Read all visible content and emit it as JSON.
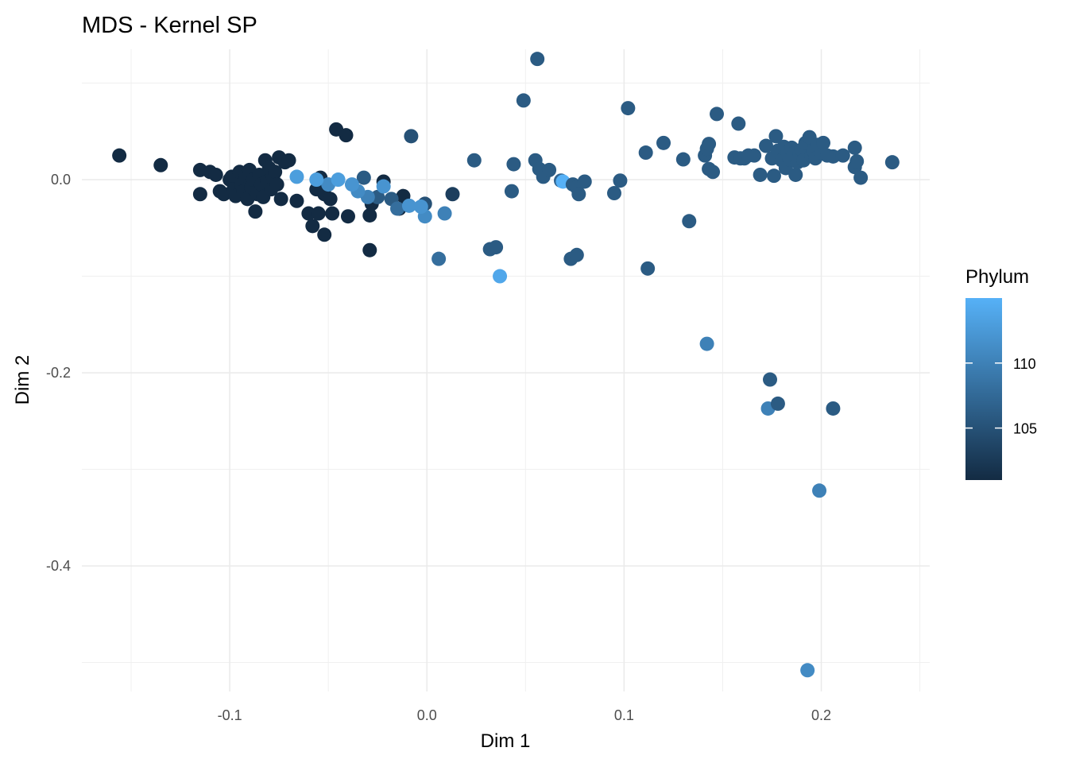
{
  "chart_data": {
    "type": "scatter",
    "title": "MDS - Kernel SP",
    "xlabel": "Dim 1",
    "ylabel": "Dim 2",
    "xlim": [
      -0.175,
      0.255
    ],
    "ylim": [
      -0.53,
      0.135
    ],
    "x_ticks": [
      -0.1,
      0.0,
      0.1,
      0.2
    ],
    "x_tick_labels": [
      "-0.1",
      "0.0",
      "0.1",
      "0.2"
    ],
    "y_ticks": [
      -0.4,
      -0.2,
      0.0
    ],
    "y_tick_labels": [
      "-0.4",
      "-0.2",
      "0.0"
    ],
    "grid": true,
    "legend": {
      "title": "Phylum",
      "placement": "right",
      "type": "colorbar",
      "range": [
        101,
        115
      ],
      "ticks": [
        105,
        110
      ],
      "tick_labels": [
        "105",
        "110"
      ],
      "low_color": "#132B43",
      "high_color": "#56B1F7"
    },
    "points": [
      {
        "x": -0.156,
        "y": 0.025,
        "c": 101
      },
      {
        "x": -0.135,
        "y": 0.015,
        "c": 101
      },
      {
        "x": -0.115,
        "y": 0.01,
        "c": 101
      },
      {
        "x": -0.115,
        "y": -0.015,
        "c": 101
      },
      {
        "x": -0.11,
        "y": 0.008,
        "c": 101
      },
      {
        "x": -0.107,
        "y": 0.005,
        "c": 101
      },
      {
        "x": -0.105,
        "y": -0.012,
        "c": 101
      },
      {
        "x": -0.103,
        "y": -0.015,
        "c": 101
      },
      {
        "x": -0.1,
        "y": 0.0,
        "c": 101
      },
      {
        "x": -0.099,
        "y": 0.003,
        "c": 101
      },
      {
        "x": -0.098,
        "y": -0.01,
        "c": 101
      },
      {
        "x": -0.097,
        "y": -0.017,
        "c": 101
      },
      {
        "x": -0.095,
        "y": 0.008,
        "c": 101
      },
      {
        "x": -0.094,
        "y": -0.005,
        "c": 101
      },
      {
        "x": -0.093,
        "y": -0.012,
        "c": 101
      },
      {
        "x": -0.092,
        "y": 0.004,
        "c": 101
      },
      {
        "x": -0.091,
        "y": -0.02,
        "c": 101
      },
      {
        "x": -0.09,
        "y": 0.01,
        "c": 101
      },
      {
        "x": -0.089,
        "y": -0.008,
        "c": 101
      },
      {
        "x": -0.088,
        "y": 0.0,
        "c": 101
      },
      {
        "x": -0.087,
        "y": -0.033,
        "c": 101
      },
      {
        "x": -0.086,
        "y": -0.015,
        "c": 101
      },
      {
        "x": -0.085,
        "y": 0.005,
        "c": 101
      },
      {
        "x": -0.084,
        "y": -0.005,
        "c": 101
      },
      {
        "x": -0.083,
        "y": -0.018,
        "c": 101
      },
      {
        "x": -0.082,
        "y": 0.02,
        "c": 101
      },
      {
        "x": -0.081,
        "y": -0.002,
        "c": 101
      },
      {
        "x": -0.08,
        "y": 0.012,
        "c": 101
      },
      {
        "x": -0.079,
        "y": -0.01,
        "c": 101
      },
      {
        "x": -0.078,
        "y": 0.003,
        "c": 101
      },
      {
        "x": -0.077,
        "y": 0.008,
        "c": 101
      },
      {
        "x": -0.076,
        "y": -0.005,
        "c": 101
      },
      {
        "x": -0.075,
        "y": 0.023,
        "c": 101
      },
      {
        "x": -0.074,
        "y": -0.02,
        "c": 101
      },
      {
        "x": -0.072,
        "y": 0.018,
        "c": 101
      },
      {
        "x": -0.07,
        "y": 0.02,
        "c": 101
      },
      {
        "x": -0.066,
        "y": -0.022,
        "c": 101
      },
      {
        "x": -0.06,
        "y": -0.035,
        "c": 101
      },
      {
        "x": -0.058,
        "y": -0.048,
        "c": 101
      },
      {
        "x": -0.056,
        "y": -0.01,
        "c": 101
      },
      {
        "x": -0.055,
        "y": -0.035,
        "c": 101
      },
      {
        "x": -0.054,
        "y": 0.002,
        "c": 101
      },
      {
        "x": -0.052,
        "y": -0.057,
        "c": 101
      },
      {
        "x": -0.052,
        "y": -0.015,
        "c": 101
      },
      {
        "x": -0.049,
        "y": -0.02,
        "c": 101
      },
      {
        "x": -0.048,
        "y": -0.035,
        "c": 101
      },
      {
        "x": -0.046,
        "y": 0.052,
        "c": 101
      },
      {
        "x": -0.041,
        "y": 0.046,
        "c": 101
      },
      {
        "x": -0.04,
        "y": -0.038,
        "c": 101
      },
      {
        "x": -0.029,
        "y": -0.037,
        "c": 101
      },
      {
        "x": -0.029,
        "y": -0.073,
        "c": 101
      },
      {
        "x": -0.028,
        "y": -0.025,
        "c": 101
      },
      {
        "x": -0.022,
        "y": -0.002,
        "c": 101
      },
      {
        "x": -0.014,
        "y": -0.03,
        "c": 101
      },
      {
        "x": -0.012,
        "y": -0.017,
        "c": 101
      },
      {
        "x": 0.013,
        "y": -0.015,
        "c": 103
      },
      {
        "x": -0.008,
        "y": 0.045,
        "c": 105
      },
      {
        "x": -0.001,
        "y": -0.025,
        "c": 105
      },
      {
        "x": -0.032,
        "y": 0.002,
        "c": 106
      },
      {
        "x": -0.025,
        "y": -0.018,
        "c": 106
      },
      {
        "x": -0.018,
        "y": -0.02,
        "c": 106
      },
      {
        "x": -0.015,
        "y": -0.03,
        "c": 108
      },
      {
        "x": -0.03,
        "y": -0.018,
        "c": 110
      },
      {
        "x": -0.035,
        "y": -0.012,
        "c": 111
      },
      {
        "x": -0.05,
        "y": -0.005,
        "c": 111
      },
      {
        "x": 0.006,
        "y": -0.082,
        "c": 108
      },
      {
        "x": 0.009,
        "y": -0.035,
        "c": 110
      },
      {
        "x": -0.001,
        "y": -0.038,
        "c": 111
      },
      {
        "x": -0.003,
        "y": -0.028,
        "c": 112
      },
      {
        "x": -0.009,
        "y": -0.027,
        "c": 112
      },
      {
        "x": -0.022,
        "y": -0.007,
        "c": 112
      },
      {
        "x": -0.038,
        "y": -0.005,
        "c": 112
      },
      {
        "x": -0.045,
        "y": 0.0,
        "c": 113
      },
      {
        "x": -0.056,
        "y": 0.0,
        "c": 113
      },
      {
        "x": -0.066,
        "y": 0.003,
        "c": 113
      },
      {
        "x": 0.024,
        "y": 0.02,
        "c": 106
      },
      {
        "x": 0.032,
        "y": -0.072,
        "c": 106
      },
      {
        "x": 0.035,
        "y": -0.07,
        "c": 106
      },
      {
        "x": 0.037,
        "y": -0.1,
        "c": 114
      },
      {
        "x": 0.043,
        "y": -0.012,
        "c": 106
      },
      {
        "x": 0.044,
        "y": 0.016,
        "c": 106
      },
      {
        "x": 0.049,
        "y": 0.082,
        "c": 106
      },
      {
        "x": 0.055,
        "y": 0.02,
        "c": 106
      },
      {
        "x": 0.056,
        "y": 0.125,
        "c": 106
      },
      {
        "x": 0.057,
        "y": 0.011,
        "c": 106
      },
      {
        "x": 0.059,
        "y": 0.003,
        "c": 106
      },
      {
        "x": 0.062,
        "y": 0.01,
        "c": 106
      },
      {
        "x": 0.068,
        "y": -0.001,
        "c": 107
      },
      {
        "x": 0.069,
        "y": -0.002,
        "c": 115
      },
      {
        "x": 0.073,
        "y": -0.082,
        "c": 106
      },
      {
        "x": 0.074,
        "y": -0.005,
        "c": 106
      },
      {
        "x": 0.076,
        "y": -0.008,
        "c": 106
      },
      {
        "x": 0.076,
        "y": -0.078,
        "c": 106
      },
      {
        "x": 0.077,
        "y": -0.015,
        "c": 106
      },
      {
        "x": 0.08,
        "y": -0.002,
        "c": 106
      },
      {
        "x": 0.095,
        "y": -0.014,
        "c": 106
      },
      {
        "x": 0.098,
        "y": -0.001,
        "c": 106
      },
      {
        "x": 0.102,
        "y": 0.074,
        "c": 106
      },
      {
        "x": 0.111,
        "y": 0.028,
        "c": 106
      },
      {
        "x": 0.112,
        "y": -0.092,
        "c": 106
      },
      {
        "x": 0.12,
        "y": 0.038,
        "c": 106
      },
      {
        "x": 0.13,
        "y": 0.021,
        "c": 106
      },
      {
        "x": 0.133,
        "y": -0.043,
        "c": 106
      },
      {
        "x": 0.141,
        "y": 0.025,
        "c": 106
      },
      {
        "x": 0.142,
        "y": 0.032,
        "c": 106
      },
      {
        "x": 0.143,
        "y": 0.037,
        "c": 106
      },
      {
        "x": 0.143,
        "y": 0.011,
        "c": 106
      },
      {
        "x": 0.145,
        "y": 0.008,
        "c": 106
      },
      {
        "x": 0.142,
        "y": -0.17,
        "c": 110
      },
      {
        "x": 0.147,
        "y": 0.068,
        "c": 106
      },
      {
        "x": 0.156,
        "y": 0.023,
        "c": 106
      },
      {
        "x": 0.158,
        "y": 0.058,
        "c": 106
      },
      {
        "x": 0.159,
        "y": 0.022,
        "c": 106
      },
      {
        "x": 0.161,
        "y": 0.022,
        "c": 106
      },
      {
        "x": 0.163,
        "y": 0.025,
        "c": 106
      },
      {
        "x": 0.166,
        "y": 0.025,
        "c": 106
      },
      {
        "x": 0.169,
        "y": 0.005,
        "c": 106
      },
      {
        "x": 0.172,
        "y": 0.035,
        "c": 106
      },
      {
        "x": 0.173,
        "y": -0.237,
        "c": 110
      },
      {
        "x": 0.174,
        "y": -0.207,
        "c": 106
      },
      {
        "x": 0.175,
        "y": 0.022,
        "c": 106
      },
      {
        "x": 0.176,
        "y": 0.004,
        "c": 106
      },
      {
        "x": 0.177,
        "y": 0.045,
        "c": 106
      },
      {
        "x": 0.178,
        "y": 0.03,
        "c": 106
      },
      {
        "x": 0.178,
        "y": -0.232,
        "c": 106
      },
      {
        "x": 0.18,
        "y": 0.02,
        "c": 106
      },
      {
        "x": 0.181,
        "y": 0.034,
        "c": 106
      },
      {
        "x": 0.182,
        "y": 0.012,
        "c": 106
      },
      {
        "x": 0.183,
        "y": 0.028,
        "c": 106
      },
      {
        "x": 0.184,
        "y": 0.021,
        "c": 106
      },
      {
        "x": 0.185,
        "y": 0.033,
        "c": 106
      },
      {
        "x": 0.186,
        "y": 0.027,
        "c": 106
      },
      {
        "x": 0.187,
        "y": 0.005,
        "c": 106
      },
      {
        "x": 0.188,
        "y": 0.018,
        "c": 106
      },
      {
        "x": 0.189,
        "y": 0.026,
        "c": 106
      },
      {
        "x": 0.19,
        "y": 0.031,
        "c": 106
      },
      {
        "x": 0.191,
        "y": 0.02,
        "c": 106
      },
      {
        "x": 0.192,
        "y": 0.038,
        "c": 106
      },
      {
        "x": 0.193,
        "y": -0.508,
        "c": 111
      },
      {
        "x": 0.194,
        "y": 0.044,
        "c": 106
      },
      {
        "x": 0.195,
        "y": 0.025,
        "c": 106
      },
      {
        "x": 0.196,
        "y": 0.03,
        "c": 106
      },
      {
        "x": 0.197,
        "y": 0.022,
        "c": 106
      },
      {
        "x": 0.198,
        "y": 0.036,
        "c": 106
      },
      {
        "x": 0.199,
        "y": -0.322,
        "c": 110
      },
      {
        "x": 0.2,
        "y": 0.028,
        "c": 106
      },
      {
        "x": 0.201,
        "y": 0.038,
        "c": 106
      },
      {
        "x": 0.203,
        "y": 0.025,
        "c": 106
      },
      {
        "x": 0.206,
        "y": -0.237,
        "c": 106
      },
      {
        "x": 0.206,
        "y": 0.024,
        "c": 106
      },
      {
        "x": 0.211,
        "y": 0.025,
        "c": 106
      },
      {
        "x": 0.217,
        "y": 0.033,
        "c": 106
      },
      {
        "x": 0.217,
        "y": 0.013,
        "c": 106
      },
      {
        "x": 0.218,
        "y": 0.019,
        "c": 106
      },
      {
        "x": 0.22,
        "y": 0.002,
        "c": 106
      },
      {
        "x": 0.236,
        "y": 0.018,
        "c": 106
      }
    ]
  }
}
